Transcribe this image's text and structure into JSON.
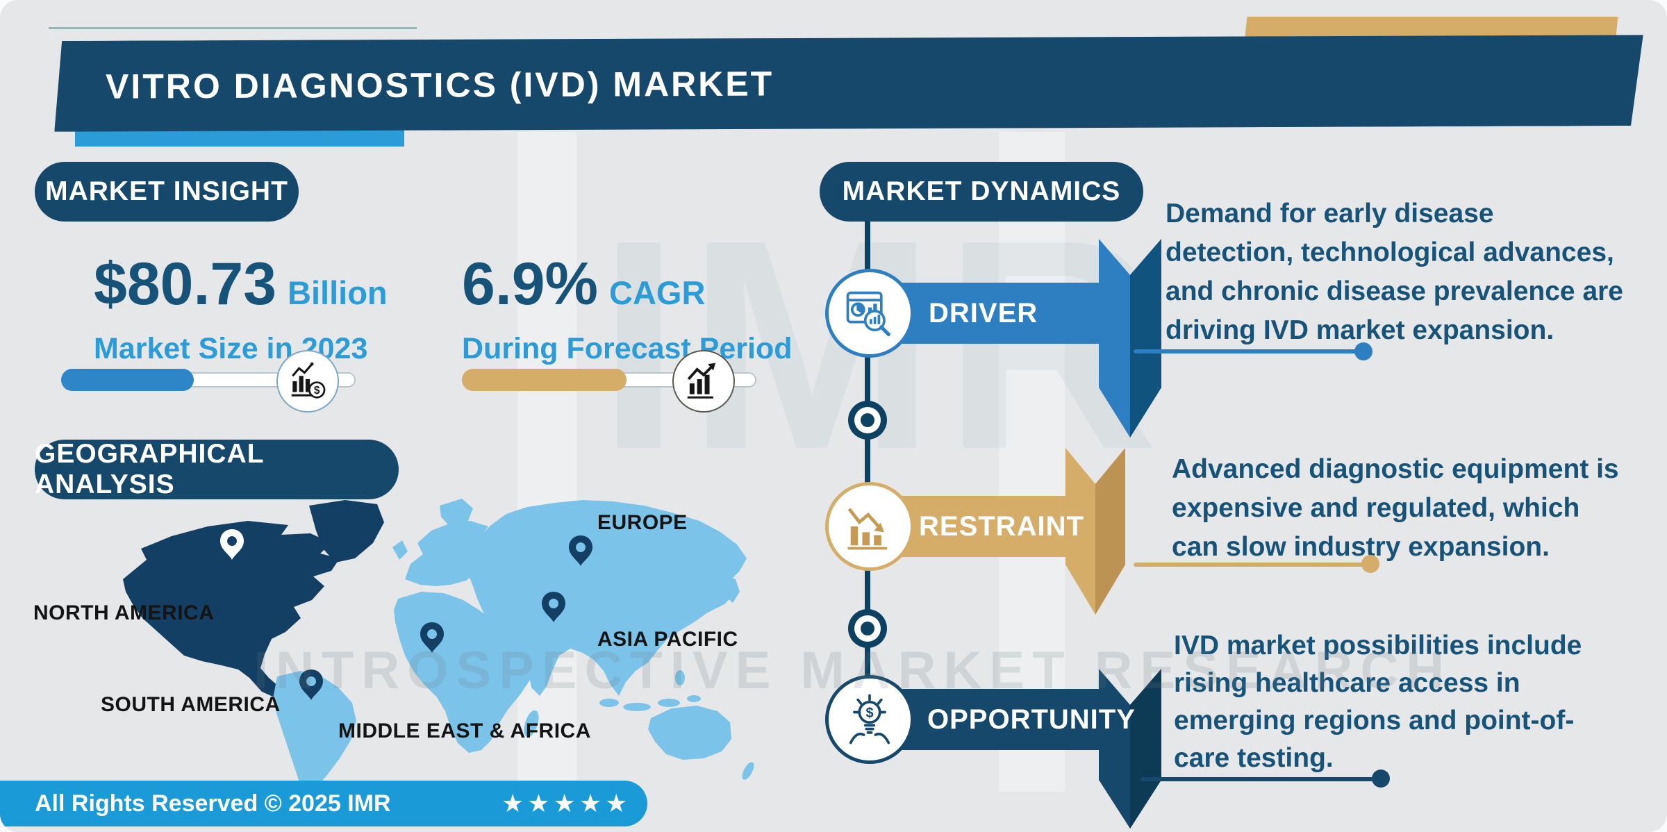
{
  "colors": {
    "background": "#e5e7e8",
    "navy": "#15486b",
    "deep_navy": "#0d4161",
    "text_blue": "#175379",
    "accent_blue": "#2b9cd8",
    "bar_blue": "#2e7fc1",
    "bar_blue_dark": "#11537f",
    "blue_fill": "#2e86c9",
    "gold": "#d5ad68",
    "gold_dark": "#bd9354",
    "footer_blue": "#1a9bd7",
    "map_light": "#7cc3e9",
    "map_dark": "#123f63"
  },
  "header": {
    "title": "VITRO DIAGNOSTICS (IVD) MARKET"
  },
  "market_insight": {
    "badge": "MARKET INSIGHT",
    "market_size": {
      "value": "$80.73",
      "unit": "Billion",
      "label": "Market Size in 2023",
      "progress_pct": 45
    },
    "cagr": {
      "value": "6.9%",
      "unit": "CAGR",
      "label": "During Forecast Period",
      "progress_pct": 56
    }
  },
  "geographical_analysis": {
    "badge": "GEOGRAPHICAL ANALYSIS",
    "labels": {
      "north_america": "NORTH AMERICA",
      "south_america": "SOUTH AMERICA",
      "europe": "EUROPE",
      "asia_pacific": "ASIA PACIFIC",
      "middle_east_africa": "MIDDLE EAST & AFRICA"
    }
  },
  "market_dynamics": {
    "badge": "MARKET DYNAMICS",
    "driver": {
      "label": "DRIVER",
      "icon": "chart-magnifier-icon",
      "text": "Demand for early disease\ndetection, technological advances,\nand chronic disease prevalence are\ndriving IVD market expansion."
    },
    "restraint": {
      "label": "RESTRAINT",
      "icon": "declining-chart-icon",
      "text": "Advanced diagnostic equipment is\nexpensive and regulated, which\ncan slow industry expansion."
    },
    "opportunity": {
      "label": "OPPORTUNITY",
      "icon": "bulb-dollar-icon",
      "text": "IVD market possibilities include\nrising healthcare access in\nemerging regions and point-of-\ncare testing."
    }
  },
  "footer": {
    "text": "All Rights Reserved © 2025 IMR",
    "stars": "★★★★★"
  },
  "watermark": {
    "line": "INTROSPECTIVE MARKET RESEARCH",
    "monogram": "IMR"
  }
}
